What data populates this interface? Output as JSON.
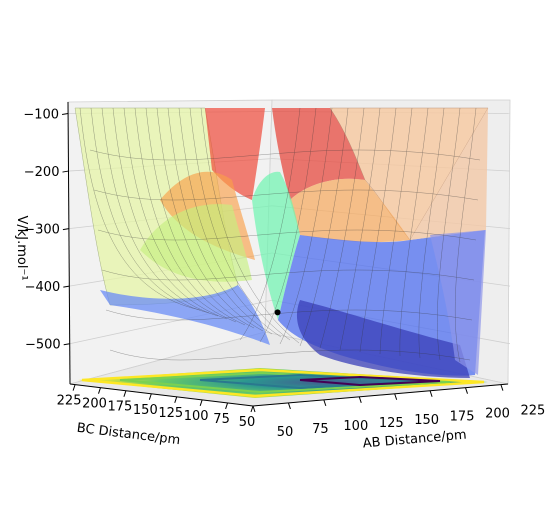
{
  "chart_data": {
    "type": "surface3d",
    "title": "",
    "xlabel": "AB Distance/pm",
    "ylabel": "BC Distance/pm",
    "zlabel": "V/kJ.mol⁻¹",
    "x_ticks": [
      "50",
      "75",
      "100",
      "125",
      "150",
      "175",
      "200",
      "225"
    ],
    "y_ticks": [
      "225",
      "200",
      "175",
      "150",
      "125",
      "100",
      "75",
      "50"
    ],
    "z_ticks": [
      "−100",
      "−200",
      "−300",
      "−400",
      "−500"
    ],
    "z_tick_values": [
      -100,
      -200,
      -300,
      -400,
      -500
    ],
    "xlim": [
      50,
      230
    ],
    "ylim": [
      50,
      230
    ],
    "zlim": [
      -570,
      -80
    ],
    "surface_min_z": -560,
    "trajectory_point": {
      "x": 230,
      "y": 75,
      "z": -430
    },
    "grid": true,
    "contour_projection": true,
    "surface_colormap": "jet",
    "contour_colormap": "viridis"
  }
}
